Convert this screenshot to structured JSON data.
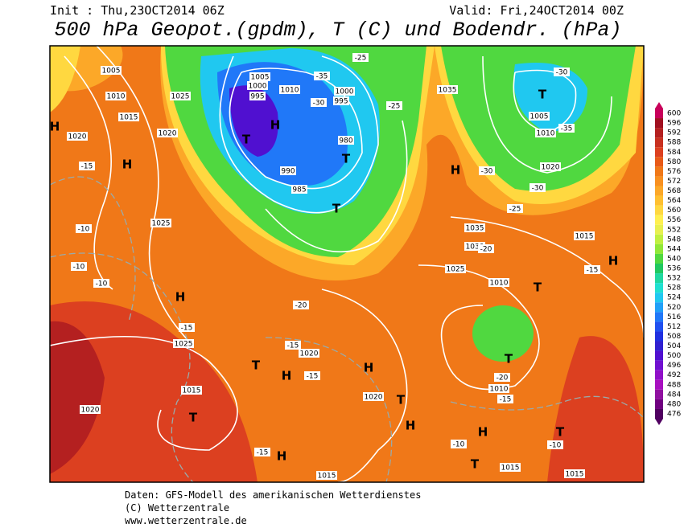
{
  "header": {
    "init": "Init : Thu,23OCT2014 06Z",
    "valid": "Valid: Fri,24OCT2014 00Z",
    "title": "500 hPa Geopot.(gpdm), T (C) und Bodendr. (hPa)"
  },
  "colorbar": {
    "ticks": [
      600,
      596,
      592,
      588,
      584,
      580,
      576,
      572,
      568,
      564,
      560,
      556,
      552,
      548,
      544,
      540,
      536,
      532,
      528,
      524,
      520,
      516,
      512,
      508,
      504,
      500,
      496,
      492,
      488,
      484,
      480,
      476
    ],
    "colors": [
      "#c8005a",
      "#a01020",
      "#b42020",
      "#c83020",
      "#dc4020",
      "#e85a18",
      "#f07818",
      "#f89020",
      "#fca828",
      "#ffc030",
      "#ffd840",
      "#fff050",
      "#e8f050",
      "#c0f040",
      "#90e838",
      "#50d840",
      "#20c860",
      "#20d8a0",
      "#20e0d0",
      "#20c8f0",
      "#20a0f8",
      "#2078f8",
      "#2050f0",
      "#2030e0",
      "#3020d0",
      "#5010d0",
      "#7010d0",
      "#9010c8",
      "#a810c0",
      "#9010a0",
      "#700080",
      "#500060"
    ]
  },
  "map_labels": [
    "1005",
    "1010",
    "1015",
    "1020",
    "H",
    "H",
    "1025",
    "1020",
    "995",
    "1000",
    "1005",
    "1010",
    "H",
    "T",
    "990",
    "985",
    "T",
    "T",
    "980",
    "1000",
    "995",
    "1035",
    "T",
    "1005",
    "1010",
    "1020",
    "H",
    "1035",
    "1030",
    "1025",
    "1010",
    "T",
    "H",
    "1015",
    "1025",
    "H",
    "1025",
    "1020",
    "T",
    "H",
    "H",
    "1020",
    "1015",
    "T",
    "1020",
    "H",
    "T",
    "T",
    "1010",
    "H",
    "T",
    "T",
    "H",
    "1015",
    "1015",
    "1015",
    "-15",
    "-10",
    "-10",
    "-10",
    "-15",
    "-20",
    "-15",
    "-15",
    "-20",
    "-15",
    "-10",
    "-10",
    "-15",
    "-25",
    "-30",
    "-35",
    "-30",
    "-25",
    "-20",
    "-15",
    "-35",
    "-30",
    "-25",
    "-30"
  ],
  "footer": [
    "Daten: GFS-Modell des amerikanischen Wetterdienstes",
    "(C) Wetterzentrale",
    "www.wetterzentrale.de"
  ]
}
